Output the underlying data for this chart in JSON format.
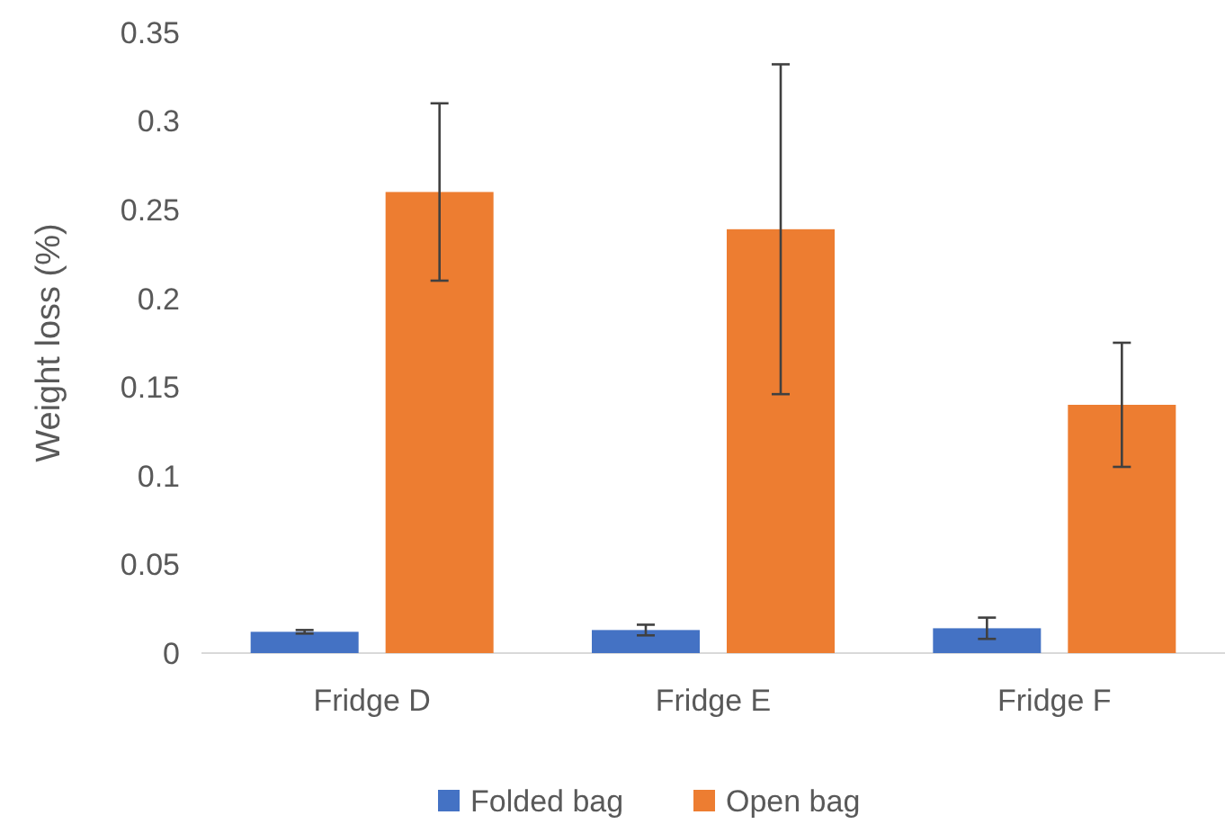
{
  "chart_data": {
    "type": "bar",
    "ylabel": "Weight loss (%)",
    "categories": [
      "Fridge D",
      "Fridge E",
      "Fridge F"
    ],
    "series": [
      {
        "name": "Folded bag",
        "color": "#4472c4",
        "values": [
          0.012,
          0.013,
          0.014
        ],
        "errors": [
          0.001,
          0.003,
          0.006
        ]
      },
      {
        "name": "Open bag",
        "color": "#ed7d31",
        "values": [
          0.26,
          0.239,
          0.14
        ],
        "errors": [
          0.05,
          0.093,
          0.035
        ]
      }
    ],
    "ylim": [
      0,
      0.35
    ],
    "yticks": [
      {
        "value": 0,
        "label": "0"
      },
      0.05,
      0.1,
      0.15,
      0.2,
      0.25,
      0.3,
      0.35
    ],
    "grid": false,
    "legend": "bottom"
  }
}
